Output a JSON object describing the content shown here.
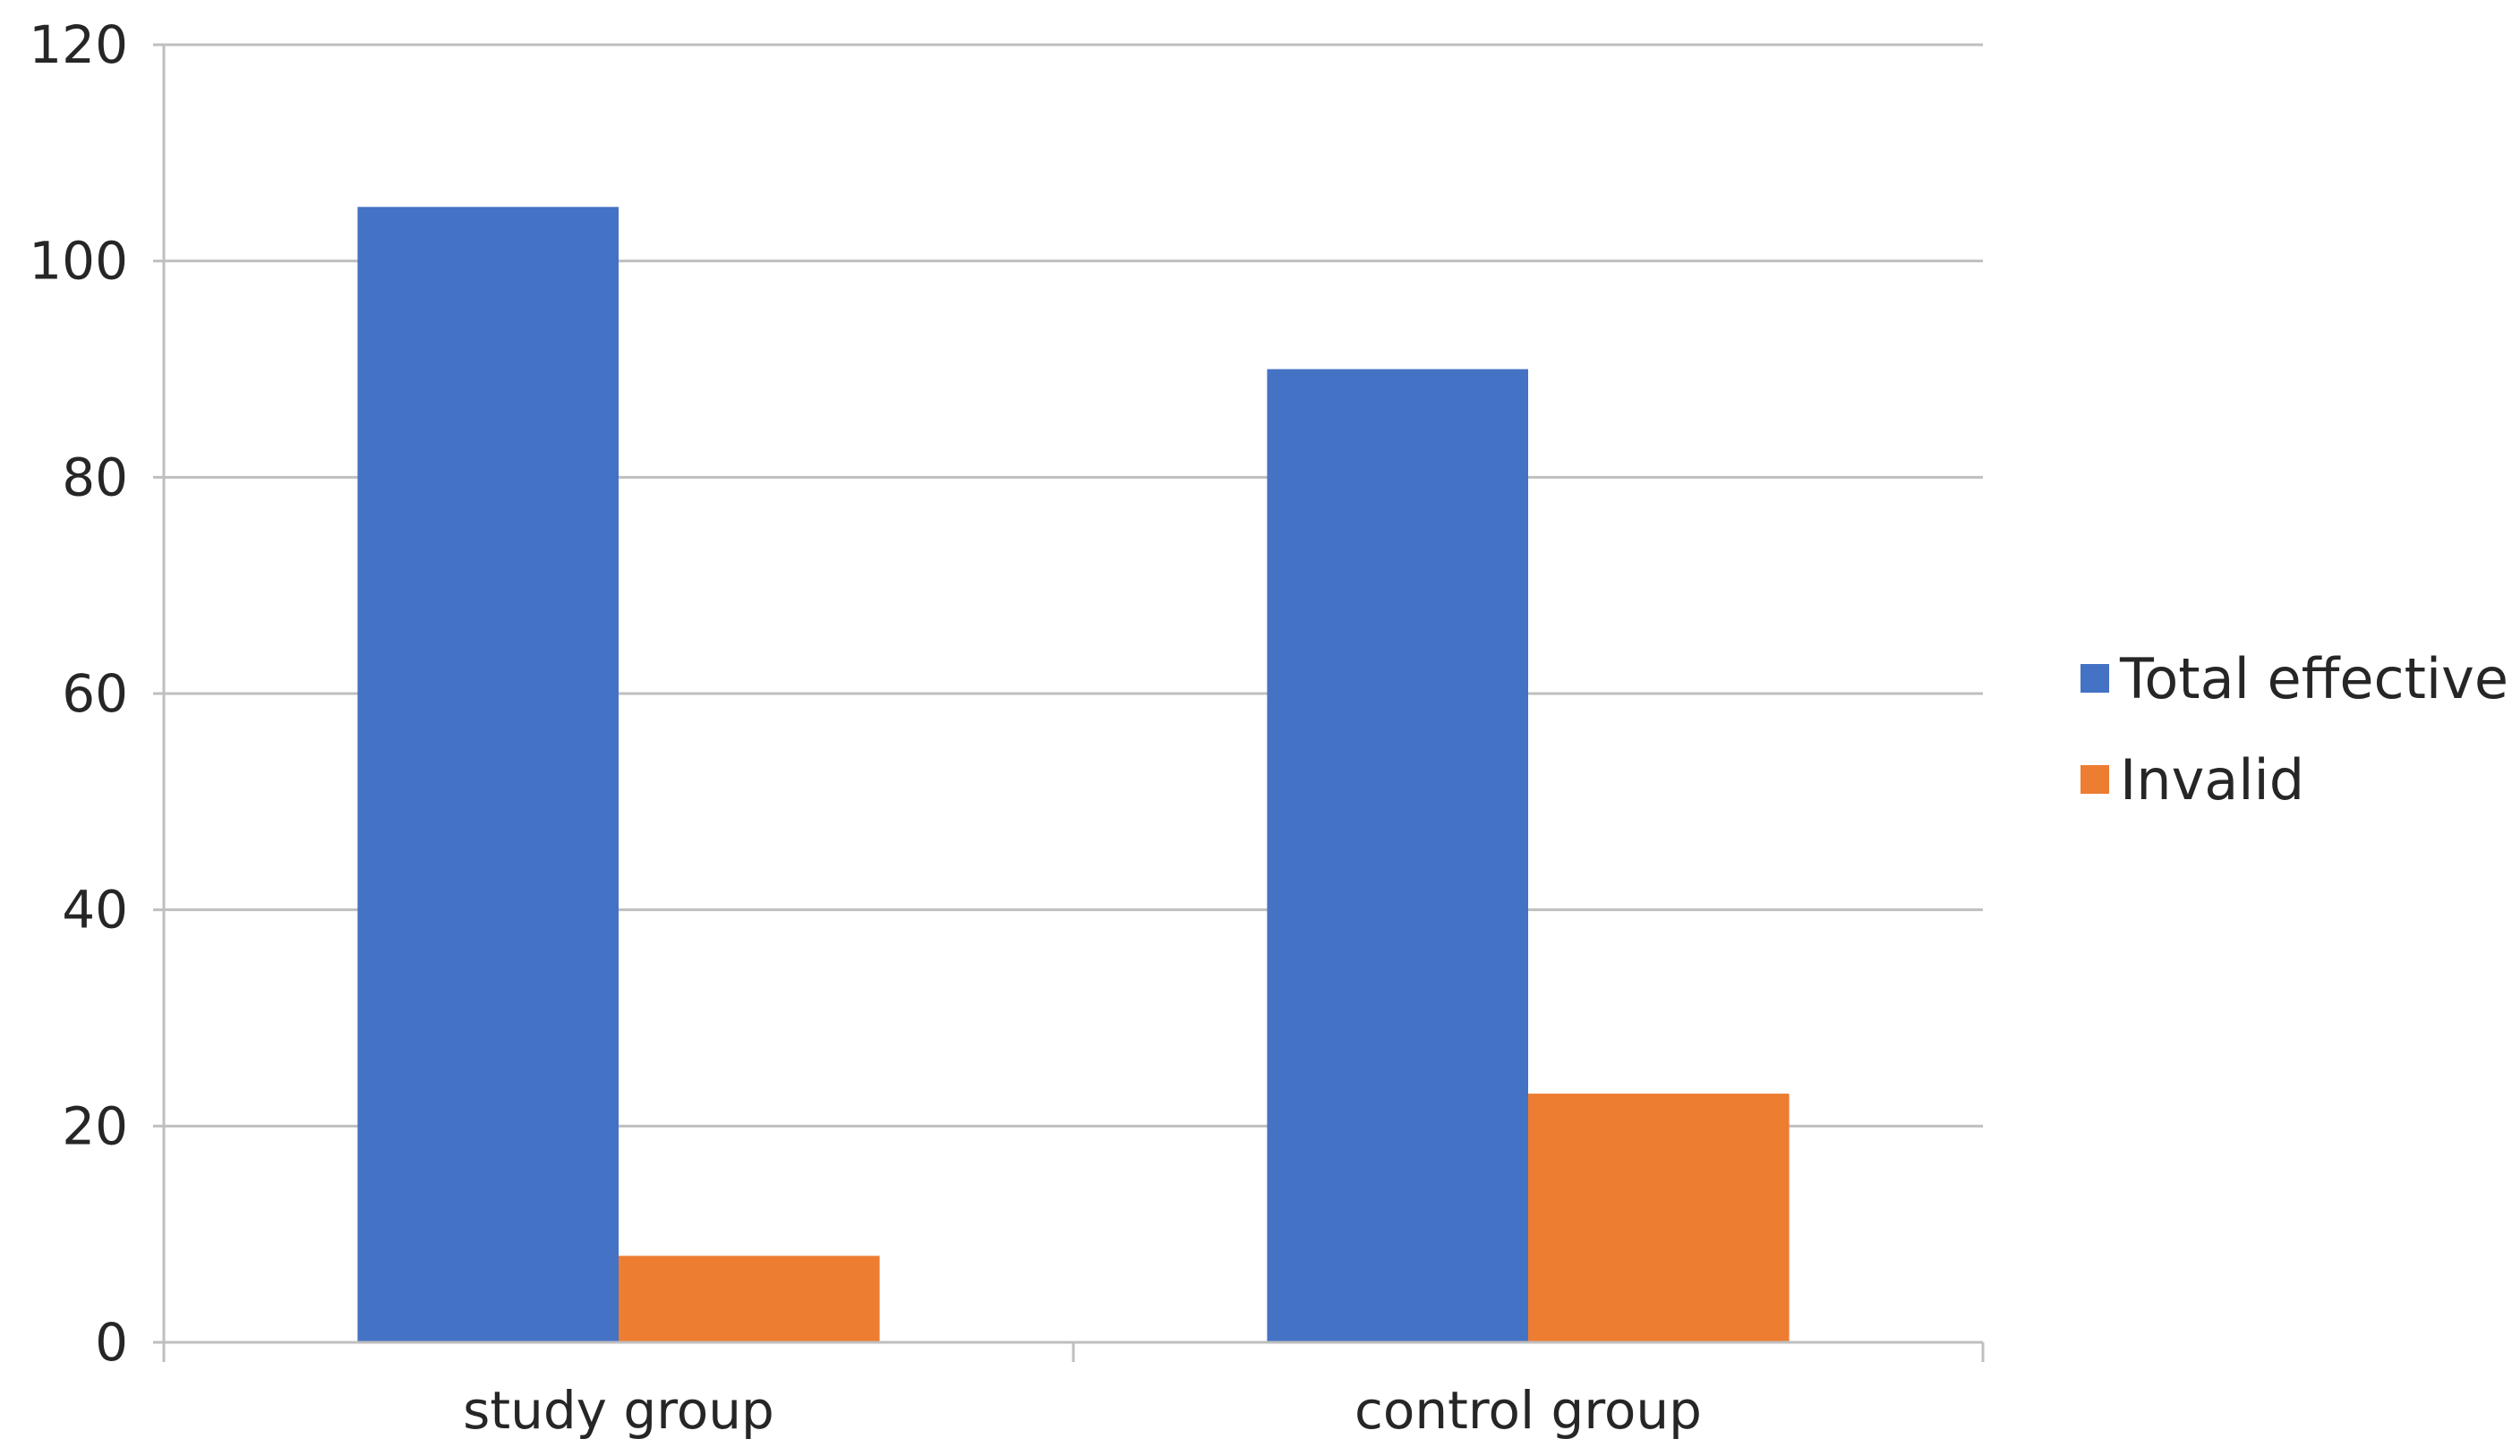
{
  "chart_data": {
    "type": "bar",
    "categories": [
      "study group",
      "control group"
    ],
    "series": [
      {
        "name": "Total effective",
        "values": [
          105,
          90
        ],
        "color": "#4472C4"
      },
      {
        "name": "Invalid",
        "values": [
          8,
          23
        ],
        "color": "#ED7D31"
      }
    ],
    "ylim": [
      0,
      120
    ],
    "yticks": [
      0,
      20,
      40,
      60,
      80,
      100,
      120
    ],
    "grid": true,
    "legend_position": "right",
    "title": "",
    "xlabel": "",
    "ylabel": ""
  }
}
